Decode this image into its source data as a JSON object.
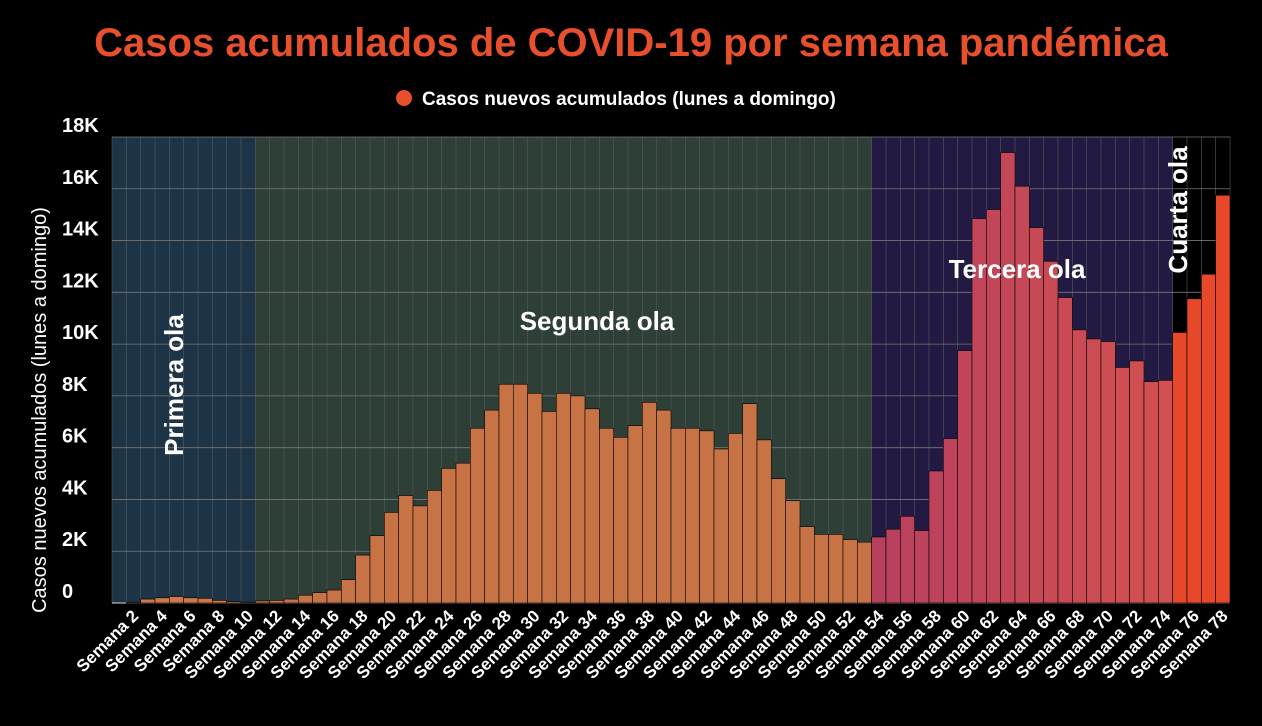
{
  "chart_data": {
    "type": "bar",
    "title": "Casos acumulados de COVID-19 por semana pandémica",
    "legend_label": "Casos nuevos acumulados (lunes a domingo)",
    "legend_color": "#e8502d",
    "y_axis_label": "Casos nuevos acumulados (lunes a domingo)",
    "categories": [
      null,
      "Semana 2",
      null,
      "Semana 4",
      null,
      "Semana 6",
      null,
      "Semana 8",
      null,
      "Semana 10",
      null,
      "Semana 12",
      null,
      "Semana 14",
      null,
      "Semana 16",
      null,
      "Semana 18",
      null,
      "Semana 20",
      null,
      "Semana 22",
      null,
      "Semana 24",
      null,
      "Semana 26",
      null,
      "Semana 28",
      null,
      "Semana 30",
      null,
      "Semana 32",
      null,
      "Semana 34",
      null,
      "Semana 36",
      null,
      "Semana 38",
      null,
      "Semana 40",
      null,
      "Semana 42",
      null,
      "Semana 44",
      null,
      "Semana 46",
      null,
      "Semana 48",
      null,
      "Semana 50",
      null,
      "Semana 52",
      null,
      "Semana 54",
      null,
      "Semana 56",
      null,
      "Semana 58",
      null,
      "Semana 60",
      null,
      "Semana 62",
      null,
      "Semana 64",
      null,
      "Semana 66",
      null,
      "Semana 68",
      null,
      "Semana 70",
      null,
      "Semana 72",
      null,
      "Semana 74",
      null,
      "Semana 76",
      null,
      "Semana 78"
    ],
    "values": [
      0,
      30,
      150,
      200,
      250,
      200,
      180,
      100,
      50,
      30,
      80,
      100,
      150,
      300,
      400,
      500,
      900,
      1850,
      2600,
      3500,
      4150,
      3750,
      4350,
      5200,
      5400,
      6750,
      7450,
      8450,
      8450,
      8100,
      7400,
      8100,
      8000,
      7500,
      6750,
      6400,
      6850,
      7750,
      7450,
      6750,
      6750,
      6650,
      5950,
      6550,
      7700,
      6300,
      4800,
      3950,
      2950,
      2650,
      2650,
      2450,
      2350,
      2550,
      2850,
      3350,
      2800,
      5100,
      6350,
      9750,
      14850,
      15200,
      17400,
      16100,
      14500,
      13200,
      11800,
      10550,
      10200,
      10100,
      9100,
      9350,
      8550,
      8600,
      10450,
      11750,
      12700,
      15750
    ],
    "regions": [
      {
        "label": "Primera ola",
        "start": 1,
        "end": 10,
        "background": "#1c3446",
        "bar_colors": [
          "#d0784a",
          "#d0784a"
        ]
      },
      {
        "label": "Segunda ola",
        "start": 11,
        "end": 53,
        "background": "#2e3f37",
        "bar_colors": [
          "#c87346",
          "#c87346"
        ]
      },
      {
        "label": "Tercera ola",
        "start": 54,
        "end": 74,
        "background": "#221a43",
        "bar_colors": [
          "#b8405f",
          "#d2504f"
        ]
      },
      {
        "label": "Cuarta ola",
        "start": 75,
        "end": 78,
        "background": "#000000",
        "bar_colors": [
          "#e8482a",
          "#e8482a"
        ]
      }
    ],
    "ylim": [
      0,
      18000
    ],
    "yticks": [
      0,
      {
        "value": 2000,
        "label": "2K"
      },
      {
        "value": 4000,
        "label": "4K"
      },
      {
        "value": 6000,
        "label": "6K"
      },
      {
        "value": 8000,
        "label": "8K"
      },
      {
        "value": 10000,
        "label": "10K"
      },
      {
        "value": 12000,
        "label": "12K"
      },
      {
        "value": 14000,
        "label": "14K"
      },
      {
        "value": 16000,
        "label": "16K"
      },
      {
        "value": 18000,
        "label": "18K"
      }
    ],
    "grid": true
  }
}
